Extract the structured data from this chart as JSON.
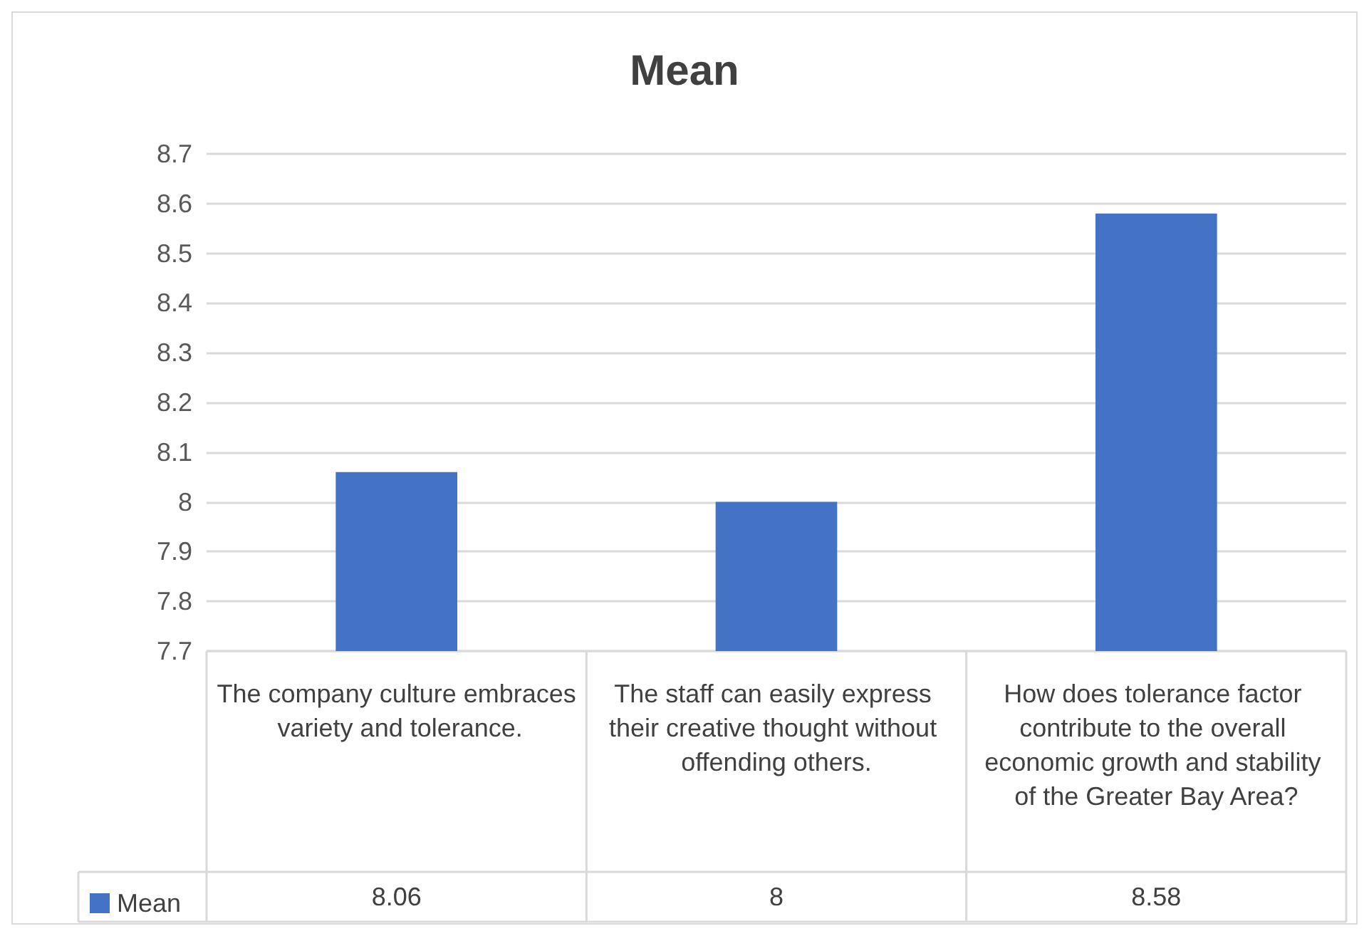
{
  "chart_data": {
    "type": "bar",
    "title": "Mean",
    "categories": [
      "The company culture embraces variety and tolerance.",
      "The staff can easily express their creative thought without offending others.",
      "How does tolerance factor contribute to the overall economic growth and stability of the Greater Bay Area?"
    ],
    "series": [
      {
        "name": "Mean",
        "color": "#4472c4",
        "values": [
          8.06,
          8,
          8.58
        ]
      }
    ],
    "ylim": [
      7.7,
      8.7
    ],
    "yticks": [
      7.7,
      7.8,
      7.9,
      8,
      8.1,
      8.2,
      8.3,
      8.4,
      8.5,
      8.6,
      8.7
    ],
    "grid": "y",
    "legend": "bottom left",
    "data_labels": true
  }
}
